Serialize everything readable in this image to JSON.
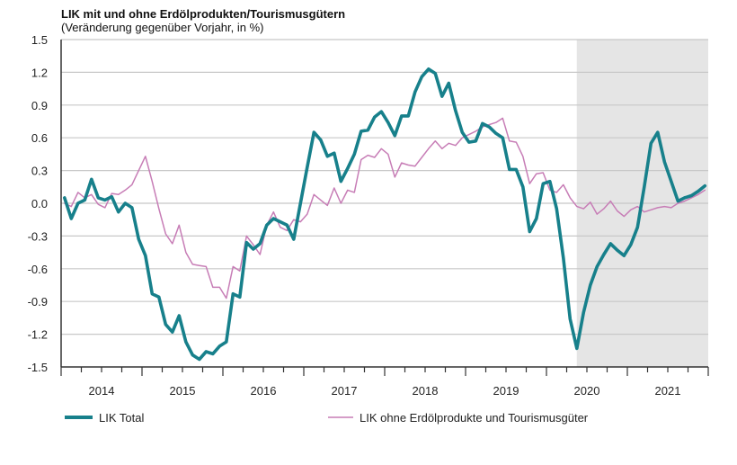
{
  "chart_data": {
    "type": "line",
    "title": "LIK mit und ohne Erdölprodukten/Tourismusgütern",
    "subtitle": "(Veränderung gegenüber Vorjahr, in %)",
    "xlabel": "",
    "ylabel": "",
    "x_start": "2014-01",
    "x_frequency": "monthly",
    "x_tick_labels": [
      "2014",
      "2015",
      "2016",
      "2017",
      "2018",
      "2019",
      "2020",
      "2021"
    ],
    "y_ticks": [
      1.5,
      1.2,
      0.9,
      0.6,
      0.3,
      0.0,
      -0.3,
      -0.6,
      -0.9,
      -1.2,
      -1.5
    ],
    "y_tick_labels": [
      "1.5",
      "1.2",
      "0.9",
      "0.6",
      "0.3",
      "0.0",
      "-0.3",
      "-0.6",
      "-0.9",
      "-1.2",
      "-1.5"
    ],
    "ylim": [
      -1.5,
      1.5
    ],
    "grid": true,
    "shaded_from_month_index": 76.5,
    "legend_position": "bottom",
    "series": [
      {
        "name": "LIK Total",
        "color": "#17808b",
        "values": [
          0.05,
          -0.14,
          0.0,
          0.03,
          0.22,
          0.05,
          0.03,
          0.06,
          -0.08,
          0.0,
          -0.04,
          -0.33,
          -0.48,
          -0.83,
          -0.86,
          -1.11,
          -1.18,
          -1.03,
          -1.27,
          -1.39,
          -1.43,
          -1.36,
          -1.38,
          -1.31,
          -1.27,
          -0.83,
          -0.86,
          -0.36,
          -0.42,
          -0.37,
          -0.2,
          -0.14,
          -0.17,
          -0.2,
          -0.33,
          0.0,
          0.33,
          0.65,
          0.58,
          0.43,
          0.46,
          0.2,
          0.32,
          0.45,
          0.66,
          0.67,
          0.79,
          0.84,
          0.74,
          0.62,
          0.8,
          0.8,
          1.02,
          1.16,
          1.23,
          1.19,
          0.98,
          1.1,
          0.85,
          0.65,
          0.56,
          0.57,
          0.73,
          0.7,
          0.64,
          0.6,
          0.31,
          0.31,
          0.15,
          -0.26,
          -0.14,
          0.18,
          0.2,
          -0.05,
          -0.5,
          -1.06,
          -1.33,
          -1.0,
          -0.75,
          -0.58,
          -0.47,
          -0.37,
          -0.43,
          -0.48,
          -0.38,
          -0.22,
          0.15,
          0.55,
          0.65,
          0.38,
          0.2,
          0.02,
          0.05,
          0.07,
          0.11,
          0.16
        ]
      },
      {
        "name": "LIK ohne Erdölprodukte und Tourismusgüter",
        "color": "#c77db6",
        "values": [
          0.0,
          -0.03,
          0.1,
          0.05,
          0.08,
          -0.01,
          -0.04,
          0.09,
          0.08,
          0.12,
          0.17,
          0.3,
          0.43,
          0.2,
          -0.05,
          -0.28,
          -0.37,
          -0.2,
          -0.45,
          -0.56,
          -0.57,
          -0.58,
          -0.77,
          -0.77,
          -0.87,
          -0.58,
          -0.62,
          -0.3,
          -0.38,
          -0.47,
          -0.2,
          -0.08,
          -0.22,
          -0.25,
          -0.15,
          -0.17,
          -0.1,
          0.08,
          0.03,
          -0.02,
          0.14,
          0.0,
          0.12,
          0.1,
          0.4,
          0.44,
          0.42,
          0.5,
          0.45,
          0.24,
          0.37,
          0.35,
          0.34,
          0.42,
          0.5,
          0.57,
          0.5,
          0.55,
          0.53,
          0.6,
          0.63,
          0.66,
          0.7,
          0.72,
          0.74,
          0.78,
          0.57,
          0.56,
          0.43,
          0.18,
          0.27,
          0.28,
          0.12,
          0.1,
          0.17,
          0.05,
          -0.03,
          -0.05,
          0.01,
          -0.1,
          -0.05,
          0.02,
          -0.07,
          -0.12,
          -0.06,
          -0.03,
          -0.08,
          -0.06,
          -0.04,
          -0.03,
          -0.04,
          0.0,
          0.02,
          0.05,
          0.08,
          0.12
        ]
      }
    ]
  }
}
